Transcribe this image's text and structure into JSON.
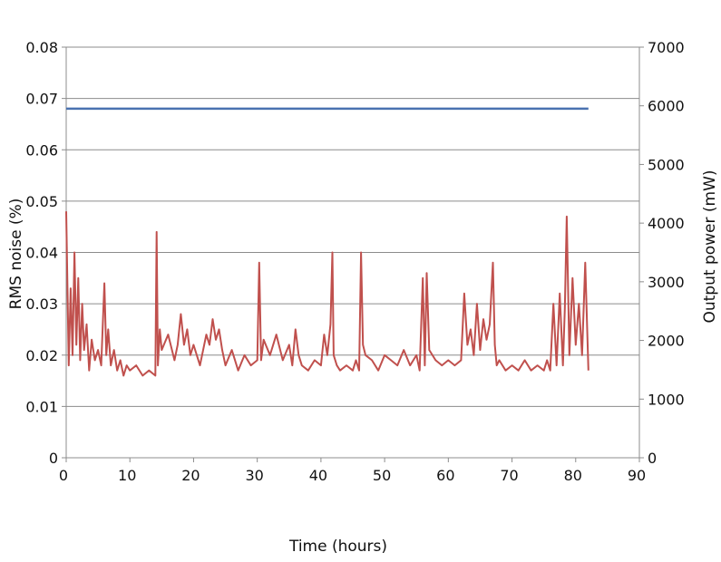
{
  "chart_data": {
    "type": "line",
    "title": "",
    "xlabel": "Time (hours)",
    "ylabel_left": "RMS noise (%)",
    "ylabel_right": "Output power (mW)",
    "x_ticks": [
      "0",
      "10",
      "20",
      "30",
      "40",
      "50",
      "60",
      "70",
      "80",
      "90"
    ],
    "y_left_ticks": [
      "0",
      "0.01",
      "0.02",
      "0.03",
      "0.04",
      "0.05",
      "0.06",
      "0.07",
      "0.08"
    ],
    "y_right_ticks": [
      "0",
      "1000",
      "2000",
      "3000",
      "4000",
      "5000",
      "6000",
      "7000"
    ],
    "xlim": [
      0,
      90
    ],
    "ylim_left": [
      0,
      0.08
    ],
    "ylim_right": [
      0,
      7000
    ],
    "grid": "horizontal",
    "legend": "none",
    "series": [
      {
        "axis": "right",
        "color": "#4a72b0",
        "x": [
          0,
          82
        ],
        "y": [
          5950,
          5950
        ]
      },
      {
        "axis": "left",
        "color": "#c0504d",
        "x": [
          0,
          0.4,
          0.7,
          1,
          1.3,
          1.6,
          1.9,
          2.2,
          2.5,
          2.8,
          3.2,
          3.6,
          4,
          4.5,
          5,
          5.5,
          6,
          6.3,
          6.6,
          7,
          7.5,
          8,
          8.5,
          9,
          9.5,
          10,
          11,
          12,
          13,
          14,
          14.2,
          14.4,
          14.7,
          15,
          16,
          17,
          17.5,
          18,
          18.5,
          19,
          19.5,
          20,
          21,
          21.5,
          22,
          22.5,
          23,
          23.5,
          24,
          24.5,
          25,
          26,
          27,
          28,
          29,
          30,
          30.3,
          30.6,
          31,
          32,
          33,
          34,
          35,
          35.5,
          36,
          36.5,
          37,
          38,
          39,
          40,
          40.5,
          41,
          41.5,
          41.8,
          42,
          42.5,
          43,
          44,
          45,
          45.5,
          46,
          46.3,
          46.6,
          47,
          48,
          49,
          50,
          51,
          52,
          53,
          54,
          55,
          55.5,
          56,
          56.3,
          56.6,
          57,
          58,
          59,
          60,
          61,
          62,
          62.5,
          63,
          63.5,
          64,
          64.5,
          65,
          65.5,
          66,
          66.5,
          67,
          67.3,
          67.6,
          68,
          69,
          70,
          71,
          72,
          73,
          74,
          75,
          75.5,
          76,
          76.5,
          77,
          77.5,
          78,
          78.3,
          78.6,
          79,
          79.5,
          80,
          80.5,
          81,
          81.5,
          82
        ],
        "y": [
          0.048,
          0.018,
          0.033,
          0.02,
          0.04,
          0.022,
          0.035,
          0.019,
          0.03,
          0.021,
          0.026,
          0.017,
          0.023,
          0.019,
          0.021,
          0.018,
          0.034,
          0.02,
          0.025,
          0.018,
          0.021,
          0.017,
          0.019,
          0.016,
          0.018,
          0.017,
          0.018,
          0.016,
          0.017,
          0.016,
          0.044,
          0.018,
          0.025,
          0.021,
          0.024,
          0.019,
          0.022,
          0.028,
          0.022,
          0.025,
          0.02,
          0.022,
          0.018,
          0.021,
          0.024,
          0.022,
          0.027,
          0.023,
          0.025,
          0.021,
          0.018,
          0.021,
          0.017,
          0.02,
          0.018,
          0.019,
          0.038,
          0.019,
          0.023,
          0.02,
          0.024,
          0.019,
          0.022,
          0.018,
          0.025,
          0.02,
          0.018,
          0.017,
          0.019,
          0.018,
          0.024,
          0.02,
          0.026,
          0.04,
          0.02,
          0.018,
          0.017,
          0.018,
          0.017,
          0.019,
          0.017,
          0.04,
          0.022,
          0.02,
          0.019,
          0.017,
          0.02,
          0.019,
          0.018,
          0.021,
          0.018,
          0.02,
          0.017,
          0.035,
          0.018,
          0.036,
          0.021,
          0.019,
          0.018,
          0.019,
          0.018,
          0.019,
          0.032,
          0.022,
          0.025,
          0.02,
          0.03,
          0.021,
          0.027,
          0.023,
          0.026,
          0.038,
          0.022,
          0.018,
          0.019,
          0.017,
          0.018,
          0.017,
          0.019,
          0.017,
          0.018,
          0.017,
          0.019,
          0.017,
          0.03,
          0.018,
          0.032,
          0.018,
          0.029,
          0.047,
          0.02,
          0.035,
          0.022,
          0.03,
          0.02,
          0.038,
          0.017
        ]
      }
    ]
  }
}
